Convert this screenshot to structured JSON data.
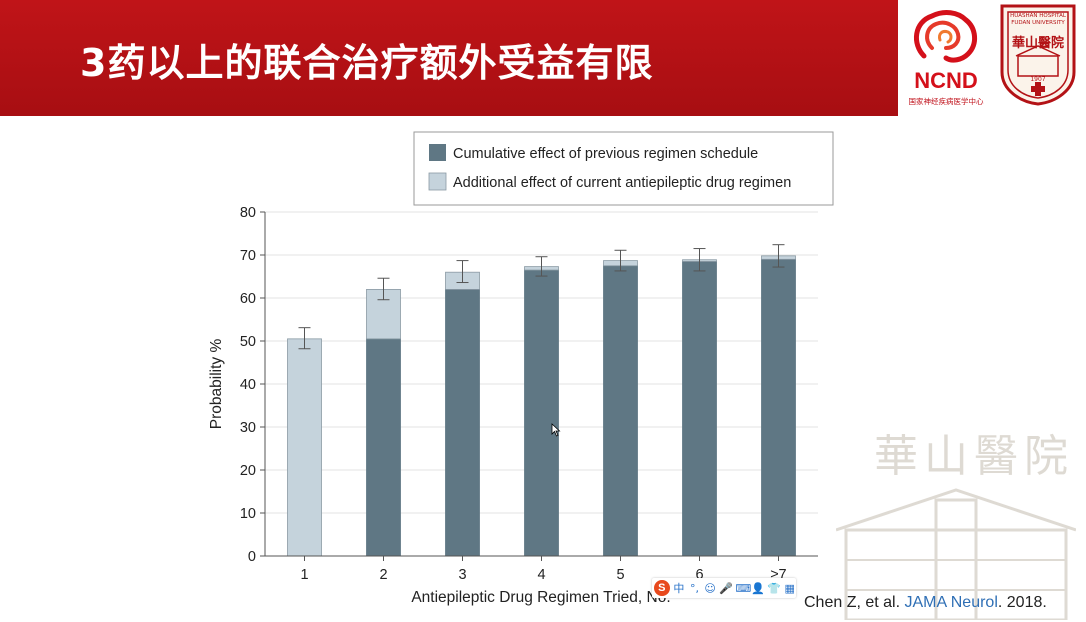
{
  "slide": {
    "title": "3药以上的联合治疗额外受益有限"
  },
  "logos": {
    "ncnd_text": "NCND",
    "ncnd_subtitle": "国家神经疾病医学中心",
    "huashan_text": "華山醫院",
    "huashan_ring_text": "HUASHAN HOSPITAL FUDAN UNIVERSITY",
    "huashan_year": "1907"
  },
  "watermark": {
    "text": "華山醫院"
  },
  "citation": {
    "authors": "Chen Z, et al.",
    "journal": "JAMA Neurol",
    "year": ". 2018."
  },
  "ime_toolbar": {
    "logo": "S",
    "buttons": [
      "中",
      "°,",
      "☺",
      "🎤",
      "⌨",
      "👤",
      "👕",
      "▦"
    ]
  },
  "colors": {
    "title_bar": "#b31216",
    "cumulative": "#5f7784",
    "additional": "#c5d3dc",
    "gridline": "#e3e3e3"
  },
  "chart_data": {
    "type": "bar",
    "stacked": true,
    "categories": [
      "1",
      "2",
      "3",
      "4",
      "5",
      "6",
      "≥7"
    ],
    "series": [
      {
        "name": "Cumulative effect of previous regimen schedule",
        "color": "#5f7784",
        "values": [
          0,
          50.5,
          62,
          66.5,
          67.5,
          68.5,
          69
        ]
      },
      {
        "name": "Additional effect of current antiepileptic drug regimen",
        "color": "#c5d3dc",
        "values": [
          50.5,
          11.5,
          4,
          0.8,
          1.2,
          0.4,
          0.8
        ]
      }
    ],
    "totals": [
      50.5,
      62,
      66,
      67.3,
      68.7,
      68.9,
      69.8
    ],
    "error_low": [
      48.2,
      59.6,
      63.6,
      65.1,
      66.3,
      66.3,
      67.2
    ],
    "error_high": [
      53.1,
      64.6,
      68.7,
      69.6,
      71.1,
      71.5,
      72.4
    ],
    "xlabel": "Antiepileptic Drug Regimen Tried, No.",
    "ylabel": "Probability %",
    "ylim": [
      0,
      80
    ],
    "yticks": [
      "0",
      "10",
      "20",
      "30",
      "40",
      "50",
      "60",
      "70",
      "80"
    ],
    "grid": true,
    "legend_position": "top"
  }
}
